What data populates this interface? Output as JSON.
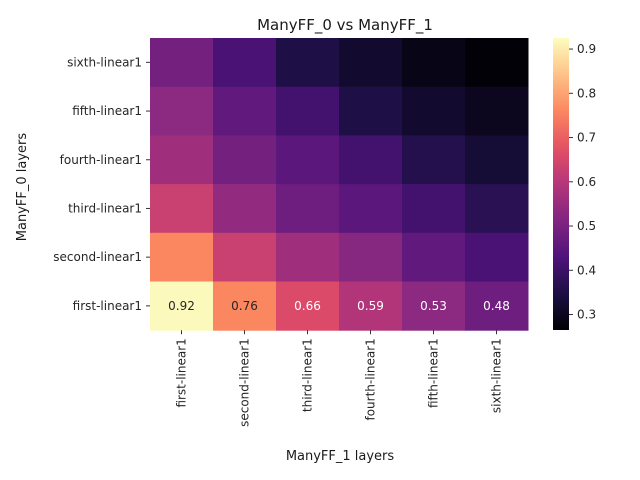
{
  "chart_data": {
    "type": "heatmap",
    "title": "ManyFF_0 vs ManyFF_1",
    "xlabel": "ManyFF_1 layers",
    "ylabel": "ManyFF_0 layers",
    "x_categories": [
      "first-linear1",
      "second-linear1",
      "third-linear1",
      "fourth-linear1",
      "fifth-linear1",
      "sixth-linear1"
    ],
    "y_categories": [
      "sixth-linear1",
      "fifth-linear1",
      "fourth-linear1",
      "third-linear1",
      "second-linear1",
      "first-linear1"
    ],
    "values": [
      [
        0.49,
        0.42,
        0.35,
        0.32,
        0.29,
        0.27
      ],
      [
        0.53,
        0.46,
        0.41,
        0.35,
        0.32,
        0.3
      ],
      [
        0.56,
        0.49,
        0.45,
        0.41,
        0.36,
        0.33
      ],
      [
        0.63,
        0.54,
        0.48,
        0.45,
        0.41,
        0.37
      ],
      [
        0.76,
        0.63,
        0.56,
        0.52,
        0.46,
        0.42
      ],
      [
        0.92,
        0.76,
        0.66,
        0.59,
        0.53,
        0.48
      ]
    ],
    "annotated_row": "first-linear1",
    "annotations": [
      "0.92",
      "0.76",
      "0.66",
      "0.59",
      "0.53",
      "0.48"
    ],
    "colormap": "magma",
    "colorbar": {
      "range": [
        0.265,
        0.925
      ],
      "ticks": [
        "0.3",
        "0.4",
        "0.5",
        "0.6",
        "0.7",
        "0.8",
        "0.9"
      ],
      "tick_values": [
        0.3,
        0.4,
        0.5,
        0.6,
        0.7,
        0.8,
        0.9
      ]
    }
  }
}
